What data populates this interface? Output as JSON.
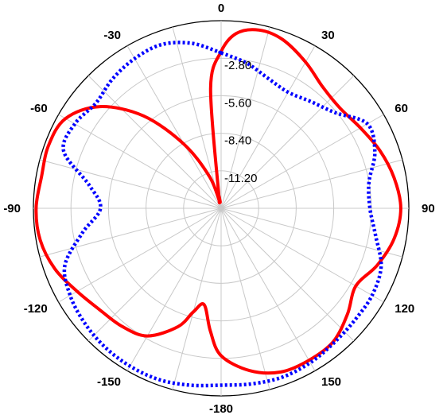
{
  "chart_data": {
    "type": "line",
    "coordinate_system": "polar",
    "angle_unit": "degrees",
    "angle_zero": "top",
    "angle_direction": "clockwise",
    "r_ticks": [
      "-2.80",
      "-5.60",
      "-8.40",
      "-11.20"
    ],
    "r_tick_values": [
      -2.8,
      -5.6,
      -8.4,
      -11.2
    ],
    "r_range": [
      -14,
      0
    ],
    "angle_ticks": [
      {
        "angle": 0,
        "label": "0"
      },
      {
        "angle": 30,
        "label": "30"
      },
      {
        "angle": 60,
        "label": "60"
      },
      {
        "angle": 90,
        "label": "90"
      },
      {
        "angle": 120,
        "label": "120"
      },
      {
        "angle": 150,
        "label": "150"
      },
      {
        "angle": 180,
        "label": "-180"
      },
      {
        "angle": -150,
        "label": "-150"
      },
      {
        "angle": -120,
        "label": "-120"
      },
      {
        "angle": -90,
        "label": "-90"
      },
      {
        "angle": -60,
        "label": "-60"
      },
      {
        "angle": -30,
        "label": "-30"
      }
    ],
    "grid": true,
    "legend": "none",
    "series": [
      {
        "color": "#ff0000",
        "style": "solid",
        "points": [
          [
            -10,
            -13.0
          ],
          [
            -5,
            -5.0
          ],
          [
            0,
            -2.3
          ],
          [
            5,
            -0.9
          ],
          [
            12,
            -0.4
          ],
          [
            20,
            -0.6
          ],
          [
            30,
            -1.4
          ],
          [
            40,
            -2.2
          ],
          [
            50,
            -2.4
          ],
          [
            60,
            -2.0
          ],
          [
            70,
            -1.4
          ],
          [
            80,
            -0.9
          ],
          [
            90,
            -0.6
          ],
          [
            100,
            -0.9
          ],
          [
            110,
            -1.6
          ],
          [
            120,
            -2.4
          ],
          [
            130,
            -1.7
          ],
          [
            140,
            -1.0
          ],
          [
            150,
            -0.9
          ],
          [
            160,
            -1.0
          ],
          [
            170,
            -1.7
          ],
          [
            180,
            -3.0
          ],
          [
            185,
            -4.8
          ],
          [
            190,
            -6.7
          ],
          [
            195,
            -6.0
          ],
          [
            200,
            -4.6
          ],
          [
            210,
            -3.0
          ],
          [
            220,
            -2.5
          ],
          [
            230,
            -2.2
          ],
          [
            240,
            -1.6
          ],
          [
            250,
            -0.8
          ],
          [
            260,
            -0.3
          ],
          [
            270,
            -0.2
          ],
          [
            280,
            -0.4
          ],
          [
            290,
            -0.3
          ],
          [
            300,
            -0.6
          ],
          [
            310,
            -2.2
          ],
          [
            320,
            -5.0
          ],
          [
            330,
            -8.5
          ],
          [
            340,
            -11.5
          ],
          [
            348,
            -13.5
          ],
          [
            350,
            -13.0
          ]
        ]
      },
      {
        "color": "#0000ff",
        "style": "dotted",
        "points": [
          [
            0,
            -2.4
          ],
          [
            10,
            -3.0
          ],
          [
            20,
            -3.7
          ],
          [
            30,
            -4.0
          ],
          [
            40,
            -3.6
          ],
          [
            50,
            -2.9
          ],
          [
            60,
            -1.4
          ],
          [
            70,
            -1.8
          ],
          [
            80,
            -2.8
          ],
          [
            90,
            -2.9
          ],
          [
            100,
            -2.3
          ],
          [
            110,
            -1.3
          ],
          [
            120,
            -1.0
          ],
          [
            130,
            -1.0
          ],
          [
            140,
            -0.9
          ],
          [
            150,
            -0.7
          ],
          [
            160,
            -0.6
          ],
          [
            170,
            -0.7
          ],
          [
            180,
            -0.8
          ],
          [
            190,
            -0.6
          ],
          [
            200,
            -0.4
          ],
          [
            210,
            -0.4
          ],
          [
            220,
            -0.5
          ],
          [
            230,
            -0.7
          ],
          [
            240,
            -1.0
          ],
          [
            250,
            -1.6
          ],
          [
            260,
            -3.5
          ],
          [
            270,
            -5.0
          ],
          [
            280,
            -4.0
          ],
          [
            290,
            -1.5
          ],
          [
            300,
            -1.4
          ],
          [
            310,
            -1.8
          ],
          [
            320,
            -1.4
          ],
          [
            330,
            -1.1
          ],
          [
            340,
            -1.0
          ],
          [
            350,
            -1.5
          ],
          [
            360,
            -2.4
          ]
        ]
      }
    ]
  }
}
